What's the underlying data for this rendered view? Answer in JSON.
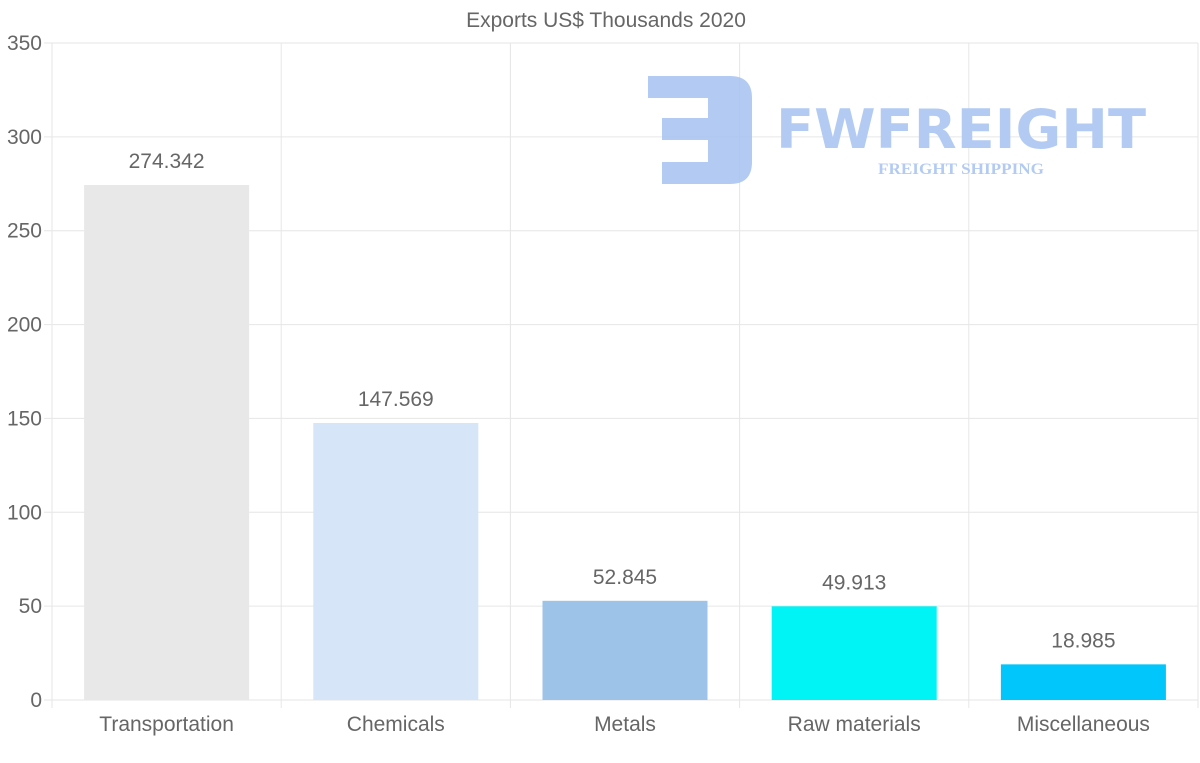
{
  "chart_data": {
    "type": "bar",
    "title": "Exports US$ Thousands 2020",
    "categories": [
      "Transportation",
      "Chemicals",
      "Metals",
      "Raw materials",
      "Miscellaneous"
    ],
    "values": [
      274.342,
      147.569,
      52.845,
      49.913,
      18.985
    ],
    "value_labels": [
      "274.342",
      "147.569",
      "52.845",
      "49.913",
      "18.985"
    ],
    "colors": [
      "#e8e8e8",
      "#d6e6f8",
      "#9dc4e8",
      "#00f3f5",
      "#00c6fb"
    ],
    "ylim": [
      0,
      350
    ],
    "yticks": [
      0,
      50,
      100,
      150,
      200,
      250,
      300,
      350
    ],
    "xlabel": "",
    "ylabel": "",
    "grid": true,
    "legend": "none"
  },
  "watermark": {
    "brand": "FWFREIGHT",
    "tagline": "FREIGHT SHIPPING",
    "color": "#b3cbf3"
  }
}
